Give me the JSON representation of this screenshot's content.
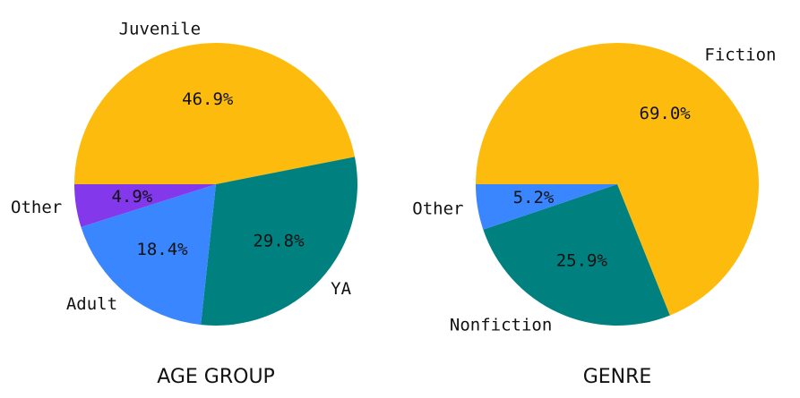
{
  "chart_data": [
    {
      "type": "pie",
      "title": "AGE GROUP",
      "categories": [
        "Juvenile",
        "YA",
        "Adult",
        "Other"
      ],
      "values": [
        46.9,
        29.8,
        18.4,
        4.9
      ],
      "value_labels": [
        "46.9%",
        "29.8%",
        "18.4%",
        "4.9%"
      ],
      "colors": [
        "#fdbc0d",
        "#018080",
        "#3a86ff",
        "#8338ec"
      ]
    },
    {
      "type": "pie",
      "title": "GENRE",
      "categories": [
        "Fiction",
        "Nonfiction",
        "Other"
      ],
      "values": [
        69.0,
        25.9,
        5.2
      ],
      "value_labels": [
        "69.0%",
        "25.9%",
        "5.2%"
      ],
      "colors": [
        "#fdbc0d",
        "#018080",
        "#3a86ff"
      ]
    }
  ]
}
